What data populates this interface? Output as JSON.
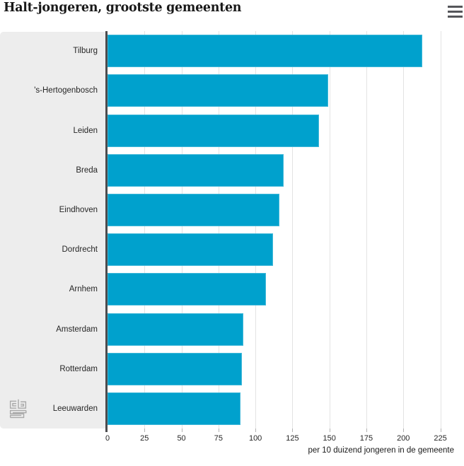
{
  "header": {
    "title": "Halt-jongeren, grootste gemeenten"
  },
  "menu": {
    "icon": "hamburger-icon"
  },
  "chart_data": {
    "type": "bar",
    "orientation": "horizontal",
    "title": "Halt-jongeren, grootste gemeenten",
    "categories": [
      "Tilburg",
      "'s-Hertogenbosch",
      "Leiden",
      "Breda",
      "Eindhoven",
      "Dordrecht",
      "Arnhem",
      "Amsterdam",
      "Rotterdam",
      "Leeuwarden"
    ],
    "values": [
      213,
      149,
      143,
      119,
      116,
      112,
      107,
      92,
      91,
      90
    ],
    "xlabel": "per 10 duizend jongeren in de gemeente",
    "ylabel": "",
    "xlim": [
      0,
      225
    ],
    "plot_xmax": 241,
    "x_ticks": [
      0,
      25,
      50,
      75,
      100,
      125,
      150,
      175,
      200,
      225
    ],
    "grid": true,
    "legend": false,
    "bar_color": "#00a1cd"
  },
  "footer": {
    "logo": "cbs-logo"
  },
  "colors": {
    "bar": "#00a1cd",
    "label_panel_bg": "#ededed",
    "axis_line": "#4c4c4e",
    "gridline": "#e3e3e3",
    "title_text": "#191919",
    "tick_text": "#262626",
    "menu_icon": "#55565a",
    "logo": "#a9a9a9"
  }
}
